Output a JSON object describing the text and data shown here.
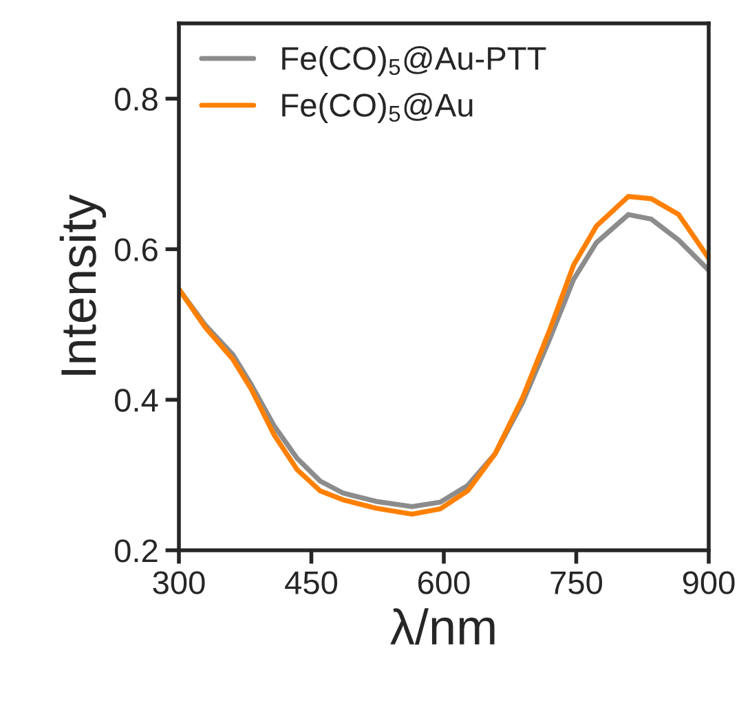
{
  "chart_data": {
    "type": "line",
    "xlabel": "λ/nm",
    "ylabel": "Intensity",
    "x": [
      300,
      330,
      361,
      382,
      408,
      434,
      460,
      486,
      523,
      564,
      596,
      627,
      658,
      689,
      720,
      747,
      773,
      809,
      835,
      866,
      900
    ],
    "series": [
      {
        "name": "Fe(CO)$_{5}$@Au-PTT",
        "color": "#8c8c8c",
        "values": [
          0.547,
          0.499,
          0.46,
          0.42,
          0.365,
          0.322,
          0.292,
          0.276,
          0.265,
          0.258,
          0.264,
          0.286,
          0.328,
          0.396,
          0.481,
          0.56,
          0.609,
          0.646,
          0.64,
          0.612,
          0.572
        ]
      },
      {
        "name": "Fe(CO)$_{5}$@Au",
        "color": "#ff8000",
        "values": [
          0.547,
          0.496,
          0.454,
          0.414,
          0.353,
          0.307,
          0.279,
          0.267,
          0.256,
          0.248,
          0.255,
          0.279,
          0.328,
          0.402,
          0.493,
          0.579,
          0.631,
          0.67,
          0.667,
          0.646,
          0.588
        ]
      }
    ],
    "xlim": [
      300,
      900
    ],
    "xticks": [
      300,
      450,
      600,
      750,
      900
    ],
    "ylim": [
      0.2,
      0.9
    ],
    "yticks": [
      {
        "value": 0.2,
        "label": "0.2"
      },
      {
        "value": 0.4,
        "label": "0.4"
      },
      {
        "value": 0.6,
        "label": "0.6"
      },
      {
        "value": 0.8,
        "label": "0.8"
      }
    ],
    "grid": false,
    "legend": "top left",
    "line_style": "solid",
    "marker": "none"
  }
}
